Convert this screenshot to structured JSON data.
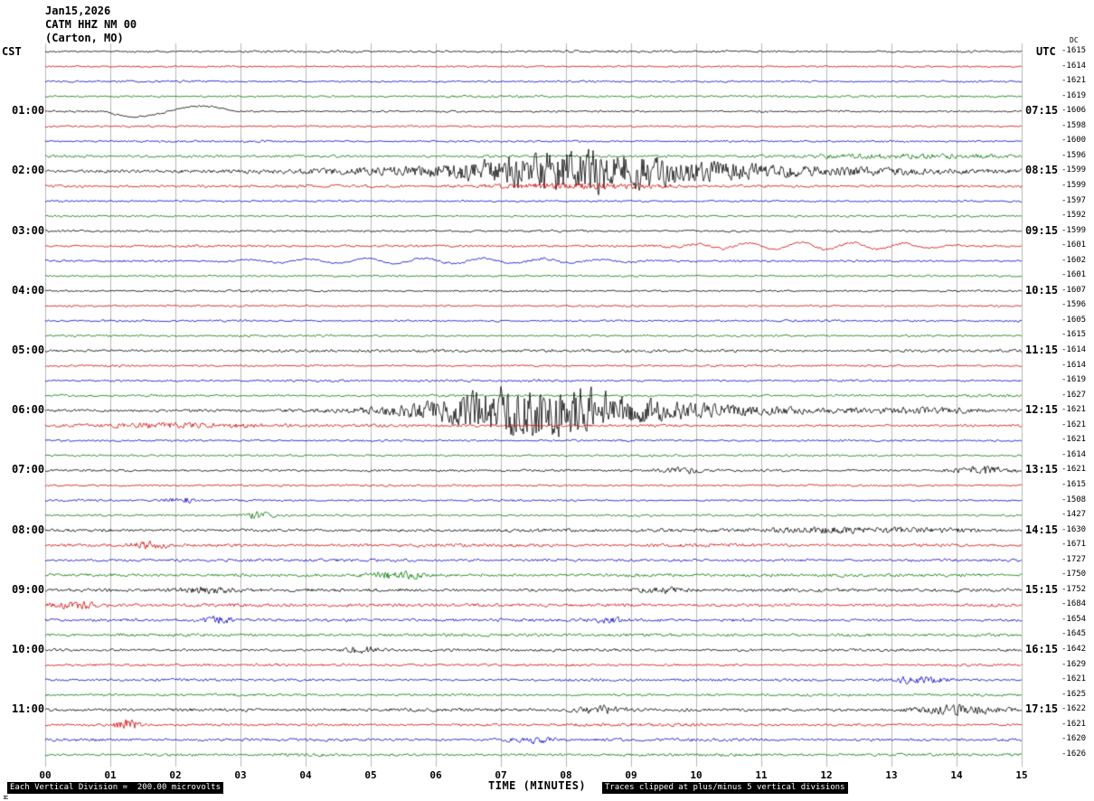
{
  "header": {
    "date": "Jan15,2026",
    "station": "CATM HHZ NM 00",
    "location": "(Carton, MO)"
  },
  "axes": {
    "left_tz": "CST",
    "right_tz": "UTC",
    "dc_label": "DC",
    "x_label": "TIME (MINUTES)",
    "x_ticks": [
      "00",
      "01",
      "02",
      "03",
      "04",
      "05",
      "06",
      "07",
      "08",
      "09",
      "10",
      "11",
      "12",
      "13",
      "14",
      "15"
    ]
  },
  "footer": {
    "scale_note": "Each Vertical Division =  200.00 microvolts",
    "clip_note": "Traces clipped at plus/minus 5 vertical divisions",
    "corner_mark": "M"
  },
  "chart_data": {
    "type": "line",
    "title": "CATM HHZ NM 00 helicorder (Carton, MO) Jan15,2026",
    "x_range_minutes": [
      0,
      15
    ],
    "minutes_per_line": 15,
    "lines_per_hour": 4,
    "color_cycle": [
      "black",
      "red",
      "blue",
      "green"
    ],
    "trace_colors": {
      "black": "#000000",
      "red": "#d40000",
      "blue": "#0000cc",
      "green": "#007700"
    },
    "grid": {
      "vertical_lines": true,
      "horizontal_lines": false
    },
    "amplitude_units": "vertical divisions of 200.00 microvolts, clipped at plus/minus 5",
    "rows": [
      {
        "cst": "",
        "utc": "",
        "dc": "-1615",
        "color": "black",
        "amp": 1.3
      },
      {
        "dc": "-1614",
        "color": "red",
        "amp": 1.2
      },
      {
        "dc": "-1621",
        "color": "blue",
        "amp": 1.2
      },
      {
        "dc": "-1619",
        "color": "green",
        "amp": 1.3
      },
      {
        "cst": "01:00",
        "utc": "07:15",
        "dc": "-1606",
        "color": "black",
        "amp": 1.3,
        "events": [
          {
            "type": "cal",
            "s": 0.9,
            "e": 2.9,
            "a": 6
          }
        ]
      },
      {
        "dc": "-1598",
        "color": "red",
        "amp": 1.2
      },
      {
        "dc": "-1600",
        "color": "blue",
        "amp": 1.2
      },
      {
        "dc": "-1596",
        "color": "green",
        "amp": 1.7,
        "events": [
          {
            "type": "burst",
            "s": 11,
            "e": 15,
            "a": 2.5
          }
        ]
      },
      {
        "cst": "02:00",
        "utc": "08:15",
        "dc": "-1599",
        "color": "black",
        "amp": 1.6,
        "events": [
          {
            "type": "burst",
            "s": 3,
            "e": 15,
            "a": 9
          },
          {
            "type": "burst",
            "s": 6,
            "e": 10.5,
            "a": 20
          }
        ]
      },
      {
        "dc": "-1599",
        "color": "red",
        "amp": 1.7,
        "events": [
          {
            "type": "burst",
            "s": 6.5,
            "e": 10,
            "a": 3.5
          }
        ]
      },
      {
        "dc": "-1597",
        "color": "blue",
        "amp": 1.3
      },
      {
        "dc": "-1592",
        "color": "green",
        "amp": 1.3
      },
      {
        "cst": "03:00",
        "utc": "09:15",
        "dc": "-1599",
        "color": "black",
        "amp": 1.4
      },
      {
        "dc": "-1601",
        "color": "red",
        "amp": 1.4,
        "events": [
          {
            "type": "lp",
            "s": 9,
            "e": 14.5,
            "a": 4,
            "p": 0.8
          }
        ]
      },
      {
        "dc": "-1602",
        "color": "blue",
        "amp": 1.4,
        "events": [
          {
            "type": "lp",
            "s": 2,
            "e": 10,
            "a": 3,
            "p": 0.9
          }
        ]
      },
      {
        "dc": "-1601",
        "color": "green",
        "amp": 1.3
      },
      {
        "cst": "04:00",
        "utc": "10:15",
        "dc": "-1607",
        "color": "black",
        "amp": 1.3
      },
      {
        "dc": "-1596",
        "color": "red",
        "amp": 1.2
      },
      {
        "dc": "-1605",
        "color": "blue",
        "amp": 1.3
      },
      {
        "dc": "-1615",
        "color": "green",
        "amp": 1.3
      },
      {
        "cst": "05:00",
        "utc": "11:15",
        "dc": "-1614",
        "color": "black",
        "amp": 1.8
      },
      {
        "dc": "-1614",
        "color": "red",
        "amp": 1.3
      },
      {
        "dc": "-1619",
        "color": "blue",
        "amp": 1.3
      },
      {
        "dc": "-1627",
        "color": "green",
        "amp": 1.4
      },
      {
        "cst": "06:00",
        "utc": "12:15",
        "dc": "-1621",
        "color": "black",
        "amp": 1.7,
        "events": [
          {
            "type": "burst",
            "s": 4.5,
            "e": 12.5,
            "a": 11
          },
          {
            "type": "burst",
            "s": 5.5,
            "e": 9.5,
            "a": 26
          },
          {
            "type": "burst",
            "s": 12,
            "e": 15,
            "a": 3
          }
        ]
      },
      {
        "dc": "-1621",
        "color": "red",
        "amp": 1.7,
        "events": [
          {
            "type": "burst",
            "s": 0,
            "e": 4,
            "a": 2.5
          }
        ]
      },
      {
        "dc": "-1621",
        "color": "blue",
        "amp": 1.3
      },
      {
        "dc": "-1614",
        "color": "green",
        "amp": 1.3
      },
      {
        "cst": "07:00",
        "utc": "13:15",
        "dc": "-1621",
        "color": "black",
        "amp": 1.5,
        "events": [
          {
            "type": "burst",
            "s": 9.3,
            "e": 10.3,
            "a": 3.5
          },
          {
            "type": "burst",
            "s": 13.8,
            "e": 15,
            "a": 5
          }
        ]
      },
      {
        "dc": "-1615",
        "color": "red",
        "amp": 1.3
      },
      {
        "dc": "-1508",
        "color": "blue",
        "amp": 1.3,
        "events": [
          {
            "type": "burst",
            "s": 1.8,
            "e": 2.4,
            "a": 3.5
          }
        ]
      },
      {
        "dc": "-1427",
        "color": "green",
        "amp": 1.4,
        "events": [
          {
            "type": "burst",
            "s": 3.0,
            "e": 3.6,
            "a": 4.5
          }
        ]
      },
      {
        "cst": "08:00",
        "utc": "14:15",
        "dc": "-1630",
        "color": "black",
        "amp": 1.9,
        "events": [
          {
            "type": "burst",
            "s": 10,
            "e": 15,
            "a": 3
          }
        ]
      },
      {
        "dc": "-1671",
        "color": "red",
        "amp": 1.9,
        "events": [
          {
            "type": "burst",
            "s": 1.2,
            "e": 2.0,
            "a": 4.5
          }
        ]
      },
      {
        "dc": "-1727",
        "color": "blue",
        "amp": 1.9
      },
      {
        "dc": "-1750",
        "color": "green",
        "amp": 2.0,
        "events": [
          {
            "type": "burst",
            "s": 4.8,
            "e": 6.0,
            "a": 5
          }
        ]
      },
      {
        "cst": "09:00",
        "utc": "15:15",
        "dc": "-1752",
        "color": "black",
        "amp": 2.0,
        "events": [
          {
            "type": "burst",
            "s": 2,
            "e": 3,
            "a": 3.5
          },
          {
            "type": "burst",
            "s": 9,
            "e": 10,
            "a": 3.5
          }
        ]
      },
      {
        "dc": "-1684",
        "color": "red",
        "amp": 2.0,
        "events": [
          {
            "type": "burst",
            "s": 0,
            "e": 1,
            "a": 4.5
          }
        ]
      },
      {
        "dc": "-1654",
        "color": "blue",
        "amp": 1.9,
        "events": [
          {
            "type": "burst",
            "s": 2.3,
            "e": 3.0,
            "a": 4.5
          },
          {
            "type": "burst",
            "s": 8.3,
            "e": 9.0,
            "a": 3.5
          }
        ]
      },
      {
        "dc": "-1645",
        "color": "green",
        "amp": 1.8
      },
      {
        "cst": "10:00",
        "utc": "16:15",
        "dc": "-1642",
        "color": "black",
        "amp": 1.8,
        "events": [
          {
            "type": "burst",
            "s": 4.5,
            "e": 5.2,
            "a": 4.5
          }
        ]
      },
      {
        "dc": "-1629",
        "color": "red",
        "amp": 1.5
      },
      {
        "dc": "-1621",
        "color": "blue",
        "amp": 1.6,
        "events": [
          {
            "type": "burst",
            "s": 12.8,
            "e": 14,
            "a": 4.5
          }
        ]
      },
      {
        "dc": "-1625",
        "color": "green",
        "amp": 1.6
      },
      {
        "cst": "11:00",
        "utc": "17:15",
        "dc": "-1622",
        "color": "black",
        "amp": 2.0,
        "events": [
          {
            "type": "burst",
            "s": 8,
            "e": 9,
            "a": 4.5
          },
          {
            "type": "burst",
            "s": 13,
            "e": 15,
            "a": 5
          }
        ]
      },
      {
        "dc": "-1621",
        "color": "red",
        "amp": 1.6,
        "events": [
          {
            "type": "burst",
            "s": 1.0,
            "e": 1.5,
            "a": 8
          }
        ]
      },
      {
        "dc": "-1620",
        "color": "blue",
        "amp": 1.8,
        "events": [
          {
            "type": "burst",
            "s": 7,
            "e": 8,
            "a": 3.5
          }
        ]
      },
      {
        "dc": "-1626",
        "color": "green",
        "amp": 1.8
      }
    ]
  }
}
